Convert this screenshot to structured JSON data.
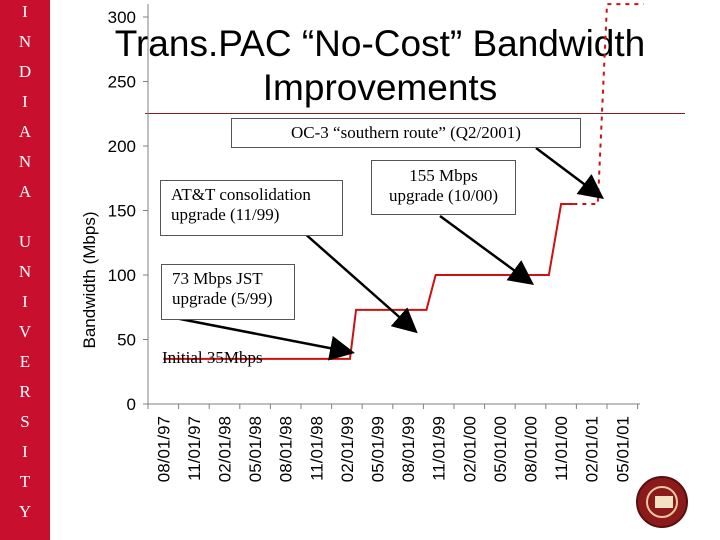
{
  "sidebar": {
    "letters": [
      "I",
      "N",
      "D",
      "I",
      "A",
      "N",
      "A",
      "U",
      "N",
      "I",
      "V",
      "E",
      "R",
      "S",
      "I",
      "T",
      "Y"
    ]
  },
  "header": {
    "title_line1": "Trans.PAC “No-Cost” Bandwidth",
    "title_line2": "Improvements"
  },
  "colors": {
    "accent": "#c8102e",
    "line": "#cc1111"
  },
  "chart_data": {
    "type": "line",
    "title": "OC-3 “southern route” (Q2/2001)",
    "ylabel": "Bandwidth (Mbps)",
    "xlabel": "",
    "ylim": [
      0,
      300
    ],
    "yticks": [
      0,
      50,
      100,
      150,
      200,
      250,
      300
    ],
    "categories": [
      "08/01/97",
      "11/01/97",
      "02/01/98",
      "05/01/98",
      "08/01/98",
      "11/01/98",
      "02/01/99",
      "05/01/99",
      "08/01/99",
      "11/01/99",
      "02/01/00",
      "05/01/00",
      "08/01/00",
      "11/01/00",
      "02/01/01",
      "05/01/01"
    ],
    "solid_points": [
      {
        "x": 0,
        "y": 35
      },
      {
        "x": 6.0,
        "y": 35
      },
      {
        "x": 6.1,
        "y": 35
      },
      {
        "x": 6.3,
        "y": 73
      },
      {
        "x": 8.6,
        "y": 73
      },
      {
        "x": 8.9,
        "y": 100
      },
      {
        "x": 12.6,
        "y": 100
      },
      {
        "x": 13.0,
        "y": 155
      },
      {
        "x": 13.4,
        "y": 155
      }
    ],
    "dashed_points": [
      {
        "x": 13.4,
        "y": 155
      },
      {
        "x": 14.2,
        "y": 155
      },
      {
        "x": 14.5,
        "y": 310
      },
      {
        "x": 15.7,
        "y": 310
      }
    ],
    "annotations": [
      {
        "text_lines": [
          "AT&T consolidation",
          "upgrade (11/99)"
        ]
      },
      {
        "text_lines": [
          "155 Mbps",
          "upgrade (10/00)"
        ]
      },
      {
        "text_lines": [
          "73 Mbps JST",
          "upgrade (5/99)"
        ]
      },
      {
        "text_lines": [
          "Initial 35Mbps"
        ]
      }
    ]
  }
}
